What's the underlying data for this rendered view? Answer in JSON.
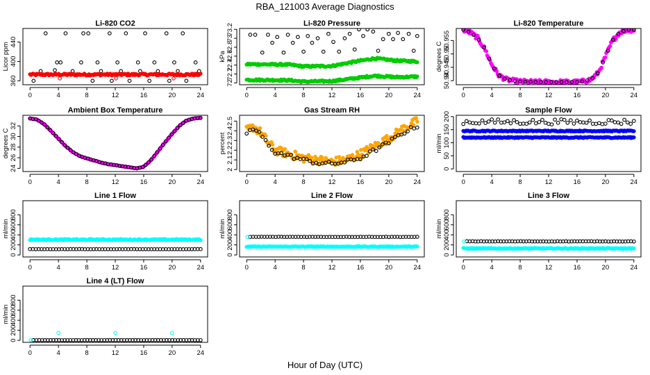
{
  "figure": {
    "title": "RBA_121003  Average Diagnostics",
    "xlabel": "Hour of Day (UTC)"
  },
  "chart_data": [
    {
      "id": "co2",
      "type": "scatter",
      "title": "Li-820 CO2",
      "ylabel": "Licor ppm",
      "xlim": [
        -1,
        25
      ],
      "ylim": [
        352,
        468
      ],
      "xticks": [
        0,
        4,
        8,
        12,
        16,
        20,
        24
      ],
      "yticks": [
        360,
        400,
        440
      ],
      "series": [
        {
          "style": "open",
          "color": "#000000",
          "x": [
            0.5,
            1.5,
            2.2,
            3.5,
            3.8,
            4.3,
            5.0,
            6.0,
            7.2,
            7.5,
            8.2,
            8.8,
            9.5,
            10.0,
            11.2,
            11.5,
            12.3,
            12.8,
            13.5,
            14.0,
            15.2,
            15.5,
            16.2,
            16.8,
            17.5,
            18.0,
            19.2,
            19.6,
            20.3,
            20.8,
            21.5,
            22.0,
            23.3,
            23.8
          ],
          "y": [
            360,
            380,
            458,
            382,
            398,
            398,
            458,
            380,
            398,
            458,
            458,
            360,
            398,
            380,
            458,
            360,
            398,
            380,
            458,
            360,
            398,
            380,
            458,
            360,
            398,
            380,
            458,
            360,
            398,
            380,
            458,
            360,
            398,
            380
          ]
        },
        {
          "style": "filled",
          "color": "#ff0000",
          "xrange": [
            0,
            24
          ],
          "y": 373,
          "jitter": 2
        },
        {
          "style": "open",
          "color": "#ff0000",
          "x": [
            4.2,
            12.1,
            20.2
          ],
          "y": [
            365,
            365,
            365
          ]
        }
      ]
    },
    {
      "id": "pressure",
      "type": "scatter",
      "title": "Li-820 Pressure",
      "ylabel": "kPa",
      "xlim": [
        -1,
        25
      ],
      "ylim": [
        71.96,
        73.22
      ],
      "xticks": [
        0,
        4,
        8,
        12,
        16,
        20,
        24
      ],
      "yticks": [
        72.0,
        72.2,
        72.4,
        72.6,
        72.8,
        73.0,
        73.2
      ],
      "series": [
        {
          "style": "open",
          "color": "#000000",
          "x": [
            0.5,
            1.2,
            2.2,
            3.0,
            3.6,
            4.3,
            5.2,
            5.8,
            6.5,
            7.2,
            8.0,
            8.6,
            9.2,
            10.0,
            10.8,
            11.5,
            12.2,
            13.0,
            13.8,
            14.5,
            15.2,
            15.8,
            16.4,
            17.0,
            17.8,
            18.5,
            19.2,
            20.0,
            20.6,
            21.3,
            22.0,
            22.8,
            23.5,
            24.0
          ],
          "y": [
            73.08,
            73.08,
            72.68,
            73.08,
            72.9,
            73.03,
            72.68,
            73.08,
            72.9,
            73.03,
            72.7,
            73.05,
            72.9,
            73.0,
            72.7,
            73.1,
            72.92,
            72.7,
            73.0,
            73.1,
            72.75,
            73.2,
            73.05,
            73.2,
            73.15,
            72.72,
            72.98,
            73.1,
            72.98,
            73.12,
            72.98,
            73.1,
            72.72,
            73.05
          ]
        },
        {
          "style": "filled",
          "color": "#00cc00",
          "line_x": [
            0,
            6,
            8,
            12,
            15,
            18,
            21,
            24
          ],
          "line_y": [
            72.42,
            72.41,
            72.37,
            72.38,
            72.47,
            72.55,
            72.5,
            72.48
          ],
          "jitter": 0.02
        },
        {
          "style": "filled",
          "color": "#00cc00",
          "line_x": [
            0,
            6,
            8,
            12,
            15,
            18,
            21,
            24
          ],
          "line_y": [
            72.07,
            72.06,
            72.03,
            72.04,
            72.1,
            72.16,
            72.13,
            72.14
          ],
          "jitter": 0.02
        }
      ]
    },
    {
      "id": "temperature",
      "type": "scatter",
      "title": "Li-820 Temperature",
      "ylabel": "degrees C",
      "xlim": [
        -1,
        25
      ],
      "ylim": [
        50.9385,
        50.9595
      ],
      "xticks": [
        0,
        4,
        8,
        12,
        16,
        20,
        24
      ],
      "yticks": [
        50.94,
        50.945,
        50.95,
        50.955
      ],
      "series": [
        {
          "style": "filled",
          "color": "#ff00ff",
          "line_x": [
            0,
            1,
            2,
            3,
            4,
            5,
            6,
            7,
            8,
            10,
            12,
            14,
            16,
            17,
            18,
            19,
            20,
            21,
            22,
            23,
            24
          ],
          "line_y": [
            50.959,
            50.958,
            50.956,
            50.952,
            50.946,
            50.942,
            50.9405,
            50.94,
            50.9397,
            50.9395,
            50.9395,
            50.9395,
            50.9395,
            50.9398,
            50.9405,
            50.943,
            50.949,
            50.955,
            50.958,
            50.959,
            50.959
          ],
          "jitter": 0.0008
        },
        {
          "style": "open",
          "color": "#000000",
          "line_x": [
            0,
            1,
            2,
            3,
            4,
            5,
            6,
            7,
            8,
            10,
            12,
            14,
            16,
            17,
            18,
            19,
            20,
            21,
            22,
            23,
            24
          ],
          "line_y": [
            50.959,
            50.958,
            50.956,
            50.952,
            50.946,
            50.942,
            50.9405,
            50.94,
            50.9397,
            50.9395,
            50.9395,
            50.9395,
            50.9395,
            50.9398,
            50.9405,
            50.943,
            50.949,
            50.955,
            50.958,
            50.959,
            50.959
          ],
          "count": 34
        }
      ]
    },
    {
      "id": "ambient",
      "type": "scatter",
      "title": "Ambient Box Temperature",
      "ylabel": "degrees C",
      "xlim": [
        -1,
        25
      ],
      "ylim": [
        23.4,
        34.0
      ],
      "xticks": [
        0,
        4,
        8,
        12,
        16,
        20,
        24
      ],
      "yticks": [
        24,
        26,
        28,
        30,
        32
      ],
      "series": [
        {
          "style": "filled",
          "color": "#ff00ff",
          "line_x": [
            0,
            1,
            2,
            3,
            4,
            5,
            6,
            7,
            8,
            9,
            10,
            11,
            12,
            13,
            14,
            15,
            16,
            17,
            18,
            19,
            20,
            21,
            22,
            23,
            24
          ],
          "line_y": [
            33.4,
            33.2,
            32.3,
            31.0,
            29.6,
            28.2,
            27.1,
            26.3,
            25.9,
            25.5,
            25.1,
            24.8,
            24.6,
            24.4,
            24.2,
            24.0,
            24.3,
            25.5,
            27.2,
            28.9,
            30.5,
            32.0,
            33.0,
            33.4,
            33.5
          ],
          "jitter": 0.05
        },
        {
          "style": "open",
          "color": "#000000",
          "line_x": [
            0,
            1,
            2,
            3,
            4,
            5,
            6,
            7,
            8,
            9,
            10,
            11,
            12,
            13,
            14,
            15,
            16,
            17,
            18,
            19,
            20,
            21,
            22,
            23,
            24
          ],
          "line_y": [
            33.4,
            33.2,
            32.3,
            31.0,
            29.6,
            28.2,
            27.1,
            26.3,
            25.9,
            25.5,
            25.1,
            24.8,
            24.6,
            24.4,
            24.2,
            24.0,
            24.3,
            25.5,
            27.2,
            28.9,
            30.5,
            32.0,
            33.0,
            33.4,
            33.5
          ],
          "count": 60
        }
      ]
    },
    {
      "id": "rh",
      "type": "scatter",
      "title": "Gas Stream RH",
      "ylabel": "percent",
      "xlim": [
        -1,
        25
      ],
      "ylim": [
        1.98,
        2.56
      ],
      "xticks": [
        0,
        4,
        8,
        12,
        16,
        20,
        24
      ],
      "yticks": [
        2.0,
        2.1,
        2.2,
        2.3,
        2.4,
        2.5
      ],
      "series": [
        {
          "style": "filled",
          "color": "#ffa500",
          "line_x": [
            0,
            1,
            2,
            3,
            4,
            6,
            8,
            10,
            12,
            14,
            16,
            18,
            20,
            22,
            24
          ],
          "line_y": [
            2.4,
            2.44,
            2.38,
            2.28,
            2.2,
            2.16,
            2.12,
            2.1,
            2.08,
            2.1,
            2.16,
            2.24,
            2.32,
            2.42,
            2.5
          ],
          "jitter": 0.045
        },
        {
          "style": "open",
          "color": "#000000",
          "line_x": [
            0,
            1,
            2,
            3,
            4,
            6,
            8,
            10,
            12,
            14,
            16,
            18,
            20,
            22,
            24
          ],
          "line_y": [
            2.38,
            2.42,
            2.36,
            2.26,
            2.18,
            2.14,
            2.1,
            2.07,
            2.06,
            2.08,
            2.12,
            2.2,
            2.28,
            2.38,
            2.45
          ],
          "count": 55,
          "jitter": 0.02
        }
      ]
    },
    {
      "id": "sampleflow",
      "type": "scatter",
      "title": "Sample Flow",
      "ylabel": "ml/min",
      "xlim": [
        -1,
        25
      ],
      "ylim": [
        -10,
        205
      ],
      "xticks": [
        0,
        4,
        8,
        12,
        16,
        20,
        24
      ],
      "yticks": [
        0,
        50,
        100,
        150,
        200
      ],
      "series": [
        {
          "style": "filled",
          "color": "#0000ff",
          "xrange": [
            0,
            24
          ],
          "y": 145,
          "jitter": 2
        },
        {
          "style": "filled",
          "color": "#0000ff",
          "xrange": [
            0,
            24
          ],
          "y": 120,
          "jitter": 2
        },
        {
          "style": "open",
          "color": "#000000",
          "xrange": [
            0,
            24
          ],
          "y": 180,
          "count": 55,
          "jitter": 10
        }
      ]
    },
    {
      "id": "line1",
      "type": "scatter",
      "title": "Line 1 Flow",
      "ylabel": "ml/min",
      "xlim": [
        -1,
        25
      ],
      "ylim": [
        -40,
        1080
      ],
      "xticks": [
        0,
        4,
        8,
        12,
        16,
        20,
        24
      ],
      "yticks": [
        0,
        200,
        400,
        600,
        800
      ],
      "series": [
        {
          "style": "filled",
          "color": "#00ffff",
          "xrange": [
            0,
            24
          ],
          "y": 305,
          "jitter": 12
        },
        {
          "style": "open",
          "color": "#000000",
          "xrange": [
            0,
            24
          ],
          "y": 115,
          "count": 60,
          "jitter": 2
        }
      ]
    },
    {
      "id": "line2",
      "type": "scatter",
      "title": "Line 2 Flow",
      "ylabel": "ml/min",
      "xlim": [
        -1,
        25
      ],
      "ylim": [
        -40,
        1080
      ],
      "xticks": [
        0,
        4,
        8,
        12,
        16,
        20,
        24
      ],
      "yticks": [
        0,
        200,
        400,
        600,
        800
      ],
      "series": [
        {
          "style": "filled",
          "color": "#00ffff",
          "xrange": [
            0,
            24
          ],
          "y": 165,
          "jitter": 8
        },
        {
          "style": "open",
          "color": "#000000",
          "xrange": [
            0.5,
            24
          ],
          "y": 360,
          "count": 60,
          "jitter": 3
        },
        {
          "style": "open",
          "color": "#00ffff",
          "x": [
            0.1
          ],
          "y": [
            360
          ]
        }
      ]
    },
    {
      "id": "line3",
      "type": "scatter",
      "title": "Line 3 Flow",
      "ylabel": "ml/min",
      "xlim": [
        -1,
        25
      ],
      "ylim": [
        -40,
        1080
      ],
      "xticks": [
        0,
        4,
        8,
        12,
        16,
        20,
        24
      ],
      "yticks": [
        0,
        200,
        400,
        600,
        800
      ],
      "series": [
        {
          "style": "filled",
          "color": "#00ffff",
          "xrange": [
            0,
            24
          ],
          "y": 130,
          "jitter": 8
        },
        {
          "style": "open",
          "color": "#000000",
          "xrange": [
            0.5,
            24
          ],
          "y": 270,
          "count": 60,
          "jitter": 3
        },
        {
          "style": "open",
          "color": "#00ffff",
          "x": [
            0.1
          ],
          "y": [
            265
          ]
        }
      ]
    },
    {
      "id": "line4",
      "type": "scatter",
      "title": "Line 4 (LT) Flow",
      "ylabel": "ml/min",
      "xlim": [
        -1,
        25
      ],
      "ylim": [
        -40,
        1080
      ],
      "xticks": [
        0,
        4,
        8,
        12,
        16,
        20,
        24
      ],
      "yticks": [
        0,
        200,
        400,
        600,
        800
      ],
      "series": [
        {
          "style": "open",
          "color": "#000000",
          "xrange": [
            0.5,
            24
          ],
          "y": 5,
          "count": 60,
          "jitter": 1
        },
        {
          "style": "open",
          "color": "#00ffff",
          "x": [
            0.1,
            4.0,
            12.0,
            20.0
          ],
          "y": [
            5,
            150,
            150,
            150
          ]
        }
      ]
    }
  ]
}
